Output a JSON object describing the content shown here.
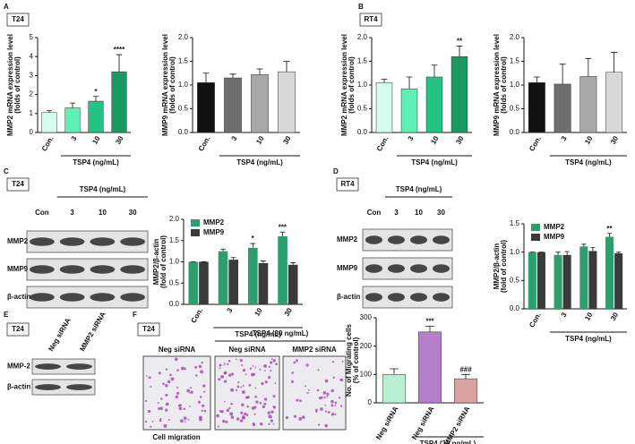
{
  "panel_letters": [
    "A",
    "B",
    "C",
    "D",
    "E",
    "F"
  ],
  "cell_line_tags": [
    "T24",
    "RT4",
    "T24",
    "RT4",
    "T24",
    "T24"
  ],
  "blots": [
    {
      "header": "TSP4 (ng/mL)",
      "lanes": [
        "Con",
        "3",
        "10",
        "30"
      ],
      "rows": [
        "MMP2",
        "MMP9",
        "β-actin"
      ]
    },
    {
      "header": "TSP4 (ng/mL)",
      "lanes": [
        "Con",
        "3",
        "10",
        "30"
      ],
      "rows": [
        "MMP2",
        "MMP9",
        "β-actin"
      ]
    },
    {
      "lanes": [
        "Neg siRNA",
        "MMP2 siRNA"
      ],
      "rows": [
        "MMP-2",
        "β-actin"
      ]
    }
  ],
  "migration_images": {
    "header": "TSP4 (30 ng/mL)",
    "labels": [
      "Neg siRNA",
      "Neg siRNA",
      "MMP2 siRNA"
    ],
    "caption": "Cell migration"
  },
  "chart_data": [
    {
      "type": "bar",
      "ylabel": [
        "MMP2 mRNA expression level",
        "(folds of control)"
      ],
      "xlabel": "TSP4 (ng/mL)",
      "categories": [
        "Con.",
        "3",
        "10",
        "30"
      ],
      "values": [
        1.05,
        1.3,
        1.65,
        3.2
      ],
      "errors": [
        0.1,
        0.25,
        0.25,
        0.9
      ],
      "colors": [
        "#d6fbef",
        "#5ef0b4",
        "#23c383",
        "#1a9a63"
      ],
      "annotations": [
        null,
        null,
        "*",
        "****"
      ],
      "ylim": [
        0,
        5
      ],
      "yticks": [
        0,
        1,
        2,
        3,
        4,
        5
      ]
    },
    {
      "type": "bar",
      "ylabel": [
        "MMP9 mRNA expression level",
        "(folds of control)"
      ],
      "xlabel": "TSP4 (ng/mL)",
      "categories": [
        "Con.",
        "3",
        "10",
        "30"
      ],
      "values": [
        1.05,
        1.15,
        1.22,
        1.28
      ],
      "errors": [
        0.2,
        0.08,
        0.12,
        0.22
      ],
      "colors": [
        "#111111",
        "#6e6e6e",
        "#a8a8a8",
        "#d8d8d8"
      ],
      "ylim": [
        0,
        2
      ],
      "yticks": [
        {
          "value": 0,
          "label": "0.0"
        },
        0.5,
        {
          "value": 1,
          "label": "1.0"
        },
        1.5,
        {
          "value": 2,
          "label": "2.0"
        }
      ]
    },
    {
      "type": "bar",
      "ylabel": [
        "MMP2 mRNA expression level",
        "(folds of control)"
      ],
      "xlabel": "TSP4 (ng/mL)",
      "categories": [
        "Con.",
        "3",
        "10",
        "30"
      ],
      "values": [
        1.05,
        0.92,
        1.17,
        1.6
      ],
      "errors": [
        0.07,
        0.25,
        0.25,
        0.22
      ],
      "colors": [
        "#d6fbef",
        "#5ef0b4",
        "#23c383",
        "#1a9a63"
      ],
      "annotations": [
        null,
        null,
        null,
        "**"
      ],
      "ylim": [
        0,
        2
      ],
      "yticks": [
        {
          "value": 0,
          "label": "0.0"
        },
        0.5,
        {
          "value": 1,
          "label": "1.0"
        },
        1.5,
        {
          "value": 2,
          "label": "2.0"
        }
      ]
    },
    {
      "type": "bar",
      "ylabel": [
        "MMP9 mRNA expression level",
        "(folds of control)"
      ],
      "xlabel": "TSP4 (ng/mL)",
      "categories": [
        "Con.",
        "3",
        "10",
        "30"
      ],
      "values": [
        1.05,
        1.02,
        1.18,
        1.27
      ],
      "errors": [
        0.12,
        0.42,
        0.38,
        0.42
      ],
      "colors": [
        "#111111",
        "#6e6e6e",
        "#a8a8a8",
        "#d8d8d8"
      ],
      "ylim": [
        0,
        2
      ],
      "yticks": [
        {
          "value": 0,
          "label": "0.0"
        },
        0.5,
        {
          "value": 1,
          "label": "1.0"
        },
        1.5,
        {
          "value": 2,
          "label": "2.0"
        }
      ]
    },
    {
      "type": "grouped_bar",
      "ylabel": [
        "MMP2/β-actin",
        "(fold of control)"
      ],
      "xlabel": "TSP4 (ng/mL)",
      "categories": [
        "Con.",
        "3",
        "10",
        "30"
      ],
      "series": [
        {
          "name": "MMP2",
          "color": "#2e9e6e",
          "values": [
            1.0,
            1.25,
            1.33,
            1.6
          ],
          "errors": [
            0,
            0.05,
            0.1,
            0.1
          ]
        },
        {
          "name": "MMP9",
          "color": "#3a3a3a",
          "values": [
            1.0,
            1.05,
            0.97,
            0.93
          ],
          "errors": [
            0,
            0.05,
            0.05,
            0.05
          ]
        }
      ],
      "annotations": [
        null,
        null,
        "*",
        "***"
      ],
      "legend": "upper left",
      "ylim": [
        0,
        2
      ],
      "yticks": [
        {
          "value": 0,
          "label": "0.0"
        },
        0.5,
        {
          "value": 1,
          "label": "1.0"
        },
        1.5,
        {
          "value": 2,
          "label": "2.0"
        }
      ]
    },
    {
      "type": "grouped_bar",
      "ylabel": [
        "MMP2/β-actin",
        "(fold of control)"
      ],
      "xlabel": "TSP4 (ng/mL)",
      "categories": [
        "Con.",
        "3",
        "10",
        "30"
      ],
      "series": [
        {
          "name": "MMP2",
          "color": "#2e9e6e",
          "values": [
            1.0,
            0.95,
            1.1,
            1.27
          ],
          "errors": [
            0,
            0.05,
            0.04,
            0.06
          ]
        },
        {
          "name": "MMP9",
          "color": "#3a3a3a",
          "values": [
            1.0,
            0.95,
            1.02,
            0.98
          ],
          "errors": [
            0,
            0.06,
            0.06,
            0.02
          ]
        }
      ],
      "annotations": [
        null,
        null,
        null,
        "**"
      ],
      "legend": "upper left",
      "ylim": [
        0,
        1.5
      ],
      "yticks": [
        {
          "value": 0,
          "label": "0.0"
        },
        0.5,
        {
          "value": 1,
          "label": "1.0"
        },
        1.5
      ]
    },
    {
      "type": "bar",
      "ylabel": [
        "No. of Migrating cells",
        "(% of control)"
      ],
      "xlabel": "TSP4 (30 ng/mL)",
      "categories": [
        "Neg siRNA",
        "Neg siRNA",
        "MMP2 siRNA"
      ],
      "values": [
        100,
        250,
        85
      ],
      "errors": [
        20,
        20,
        15
      ],
      "colors": [
        "#b9f0d3",
        "#b57fcc",
        "#d9a3a3"
      ],
      "annotations": [
        null,
        "***",
        "###"
      ],
      "ylim": [
        0,
        300
      ],
      "yticks": [
        0,
        100,
        200,
        300
      ]
    }
  ]
}
